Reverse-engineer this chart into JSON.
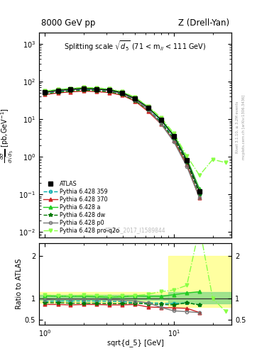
{
  "title_left": "8000 GeV pp",
  "title_right": "Z (Drell-Yan)",
  "plot_title": "Splitting scale $\\sqrt{d_5}$ (71 < m$_{ll}$ < 111 GeV)",
  "ylabel_ratio": "Ratio to ATLAS",
  "xlabel": "sqrt{d_5} [GeV]",
  "watermark": "ATLAS_2017_I1589844",
  "right_label1": "Rivet 3.1.10, ≥ 3.2M events",
  "right_label2": "mcplots.cern.ch [arXiv:1306.3436]",
  "x": [
    1.0,
    1.26,
    1.58,
    2.0,
    2.51,
    3.16,
    3.98,
    5.01,
    6.31,
    7.94,
    10.0,
    12.6,
    15.8,
    20.0,
    25.1
  ],
  "atlas_y": [
    52,
    58,
    62,
    65,
    63,
    60,
    50,
    35,
    20,
    9.5,
    3.5,
    0.8,
    0.12,
    null,
    null
  ],
  "py359_y": [
    50,
    55,
    59,
    62,
    60,
    57,
    47,
    32,
    18,
    8.5,
    3.1,
    0.72,
    0.1,
    null,
    null
  ],
  "py370_y": [
    45,
    50,
    53,
    56,
    54,
    51,
    43,
    30,
    16,
    7.5,
    2.7,
    0.62,
    0.08,
    null,
    null
  ],
  "pya_y": [
    55,
    61,
    65,
    68,
    66,
    62,
    52,
    37,
    21,
    10.0,
    3.8,
    0.9,
    0.14,
    null,
    null
  ],
  "pydw_y": [
    47,
    52,
    56,
    59,
    57,
    54,
    45,
    31,
    17.5,
    8.2,
    3.0,
    0.72,
    0.1,
    null,
    null
  ],
  "pyp0_y": [
    51,
    57,
    61,
    64,
    62,
    58,
    48,
    33,
    18,
    7.5,
    2.5,
    0.55,
    0.08,
    null,
    null
  ],
  "pyq2o_y": [
    56,
    62,
    66,
    70,
    68,
    64,
    54,
    38,
    22,
    11.0,
    4.2,
    1.05,
    0.32,
    0.85,
    0.7
  ],
  "py359_ratio": [
    0.93,
    0.94,
    0.94,
    0.94,
    0.94,
    0.93,
    0.93,
    0.9,
    0.9,
    0.89,
    0.88,
    0.9,
    0.85
  ],
  "py370_ratio": [
    0.86,
    0.86,
    0.85,
    0.86,
    0.86,
    0.85,
    0.85,
    0.86,
    0.8,
    0.79,
    0.78,
    0.77,
    0.67
  ],
  "pya_ratio": [
    1.06,
    1.05,
    1.05,
    1.05,
    1.04,
    1.03,
    1.04,
    1.06,
    1.05,
    1.05,
    1.09,
    1.13,
    1.16
  ],
  "pydw_ratio": [
    0.9,
    0.9,
    0.89,
    0.89,
    0.89,
    0.88,
    0.88,
    0.89,
    0.87,
    0.86,
    0.85,
    0.9,
    0.85
  ],
  "pyp0_ratio": [
    0.97,
    0.98,
    0.98,
    0.98,
    0.98,
    0.97,
    0.96,
    0.94,
    0.9,
    0.79,
    0.71,
    0.69,
    0.67
  ],
  "pyq2o_ratio": [
    1.08,
    1.07,
    1.06,
    1.08,
    1.07,
    1.05,
    1.06,
    1.07,
    1.1,
    1.16,
    1.2,
    1.31,
    2.67,
    1.0,
    0.7
  ],
  "colors": {
    "atlas": "#000000",
    "py359": "#00AAAA",
    "py370": "#CC2222",
    "pya": "#22CC22",
    "pydw": "#007700",
    "pyp0": "#777777",
    "pyq2o": "#88FF44"
  },
  "xlim": [
    0.9,
    28
  ],
  "ylim_main": [
    0.007,
    2000
  ],
  "ylim_ratio": [
    0.38,
    2.3
  ],
  "band_y1_lo": 0.9,
  "band_y1_hi": 1.15,
  "band_y2_lo": 0.8,
  "band_y2_hi": 2.0,
  "band_g1_lo": 0.97,
  "band_g1_hi": 1.08,
  "band_g2_lo": 0.88,
  "band_g2_hi": 1.15,
  "band_split_x": 9.0,
  "band_xmax": 28
}
